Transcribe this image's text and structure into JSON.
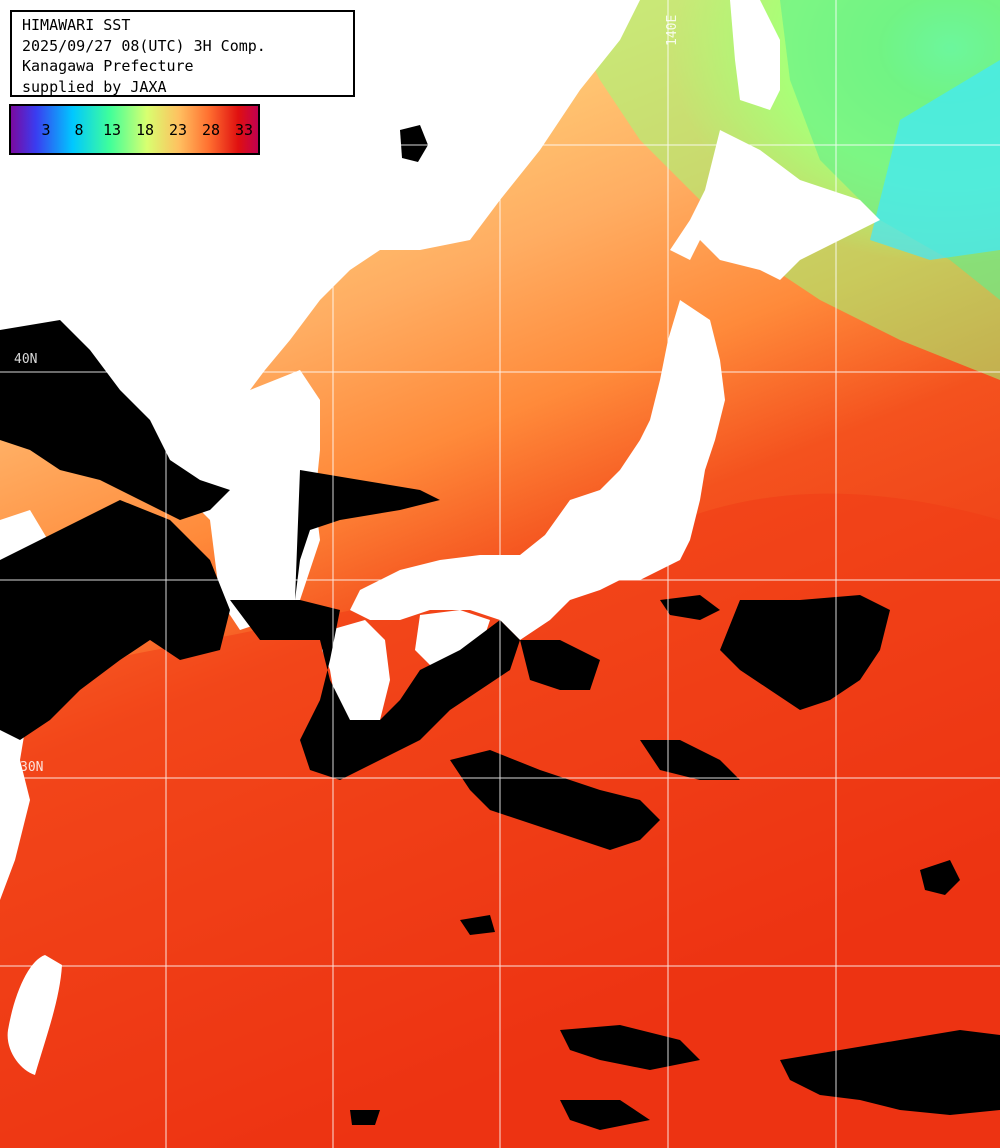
{
  "info": {
    "line1": "HIMAWARI SST",
    "line2": "2025/09/27 08(UTC) 3H Comp.",
    "line3": "Kanagawa Prefecture",
    "line4": "supplied by JAXA"
  },
  "legend": {
    "ticks": [
      "3",
      "8",
      "13",
      "18",
      "23",
      "28",
      "33"
    ],
    "colors": [
      "#5a1aa8",
      "#3a3cf0",
      "#00c8ff",
      "#40ff9a",
      "#c8ff6a",
      "#ffd070",
      "#ff8040",
      "#e01818",
      "#c00040"
    ]
  },
  "grid_labels": {
    "lon_140e": "140E",
    "lat_40n": "40N",
    "lat_30n": "30N"
  },
  "colors": {
    "land": "#ffffff",
    "cloud": "#000000",
    "grid": "#ffffff",
    "sea_cold": "#7af06a",
    "sea_cool": "#f6ff80",
    "sea_mild": "#ffc070",
    "sea_warm": "#ff8a3a",
    "sea_hot": "#e8280e"
  }
}
